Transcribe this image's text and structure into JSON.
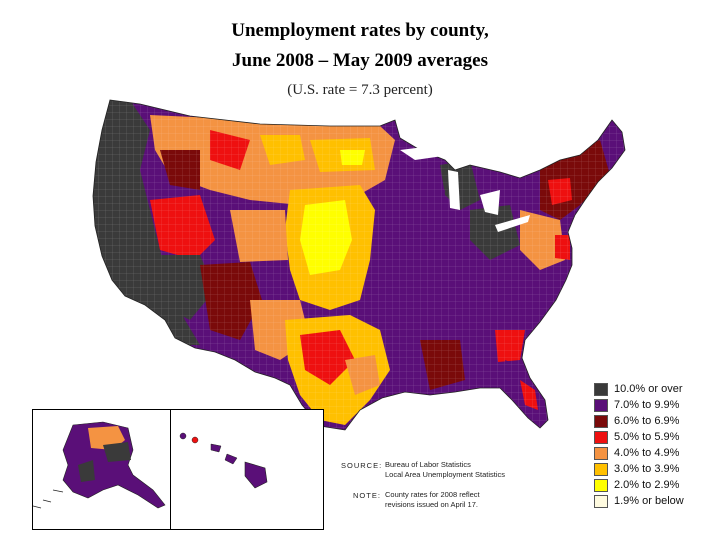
{
  "title_line1": "Unemployment rates by county,",
  "title_line2": "June 2008 – May 2009 averages",
  "subtitle": "(U.S. rate = 7.3 percent)",
  "legend": [
    {
      "label": "10.0% or over",
      "color": "#3a3a3a"
    },
    {
      "label": "7.0% to 9.9%",
      "color": "#5a0f78"
    },
    {
      "label": "6.0% to 6.9%",
      "color": "#7a0a0a"
    },
    {
      "label": "5.0% to 5.9%",
      "color": "#ee1010"
    },
    {
      "label": "4.0% to 4.9%",
      "color": "#f49342"
    },
    {
      "label": "3.0% to 3.9%",
      "color": "#ffc000"
    },
    {
      "label": "2.0% to 2.9%",
      "color": "#ffff00"
    },
    {
      "label": "1.9% or below",
      "color": "#fffbe0"
    }
  ],
  "source_key": "SOURCE:",
  "source_line1": "Bureau of Labor Statistics",
  "source_line2": "Local Area Unemployment Statistics",
  "note_key": "NOTE:",
  "note_line1": "County rates for 2008 reflect",
  "note_line2": "revisions issued on April 17."
}
